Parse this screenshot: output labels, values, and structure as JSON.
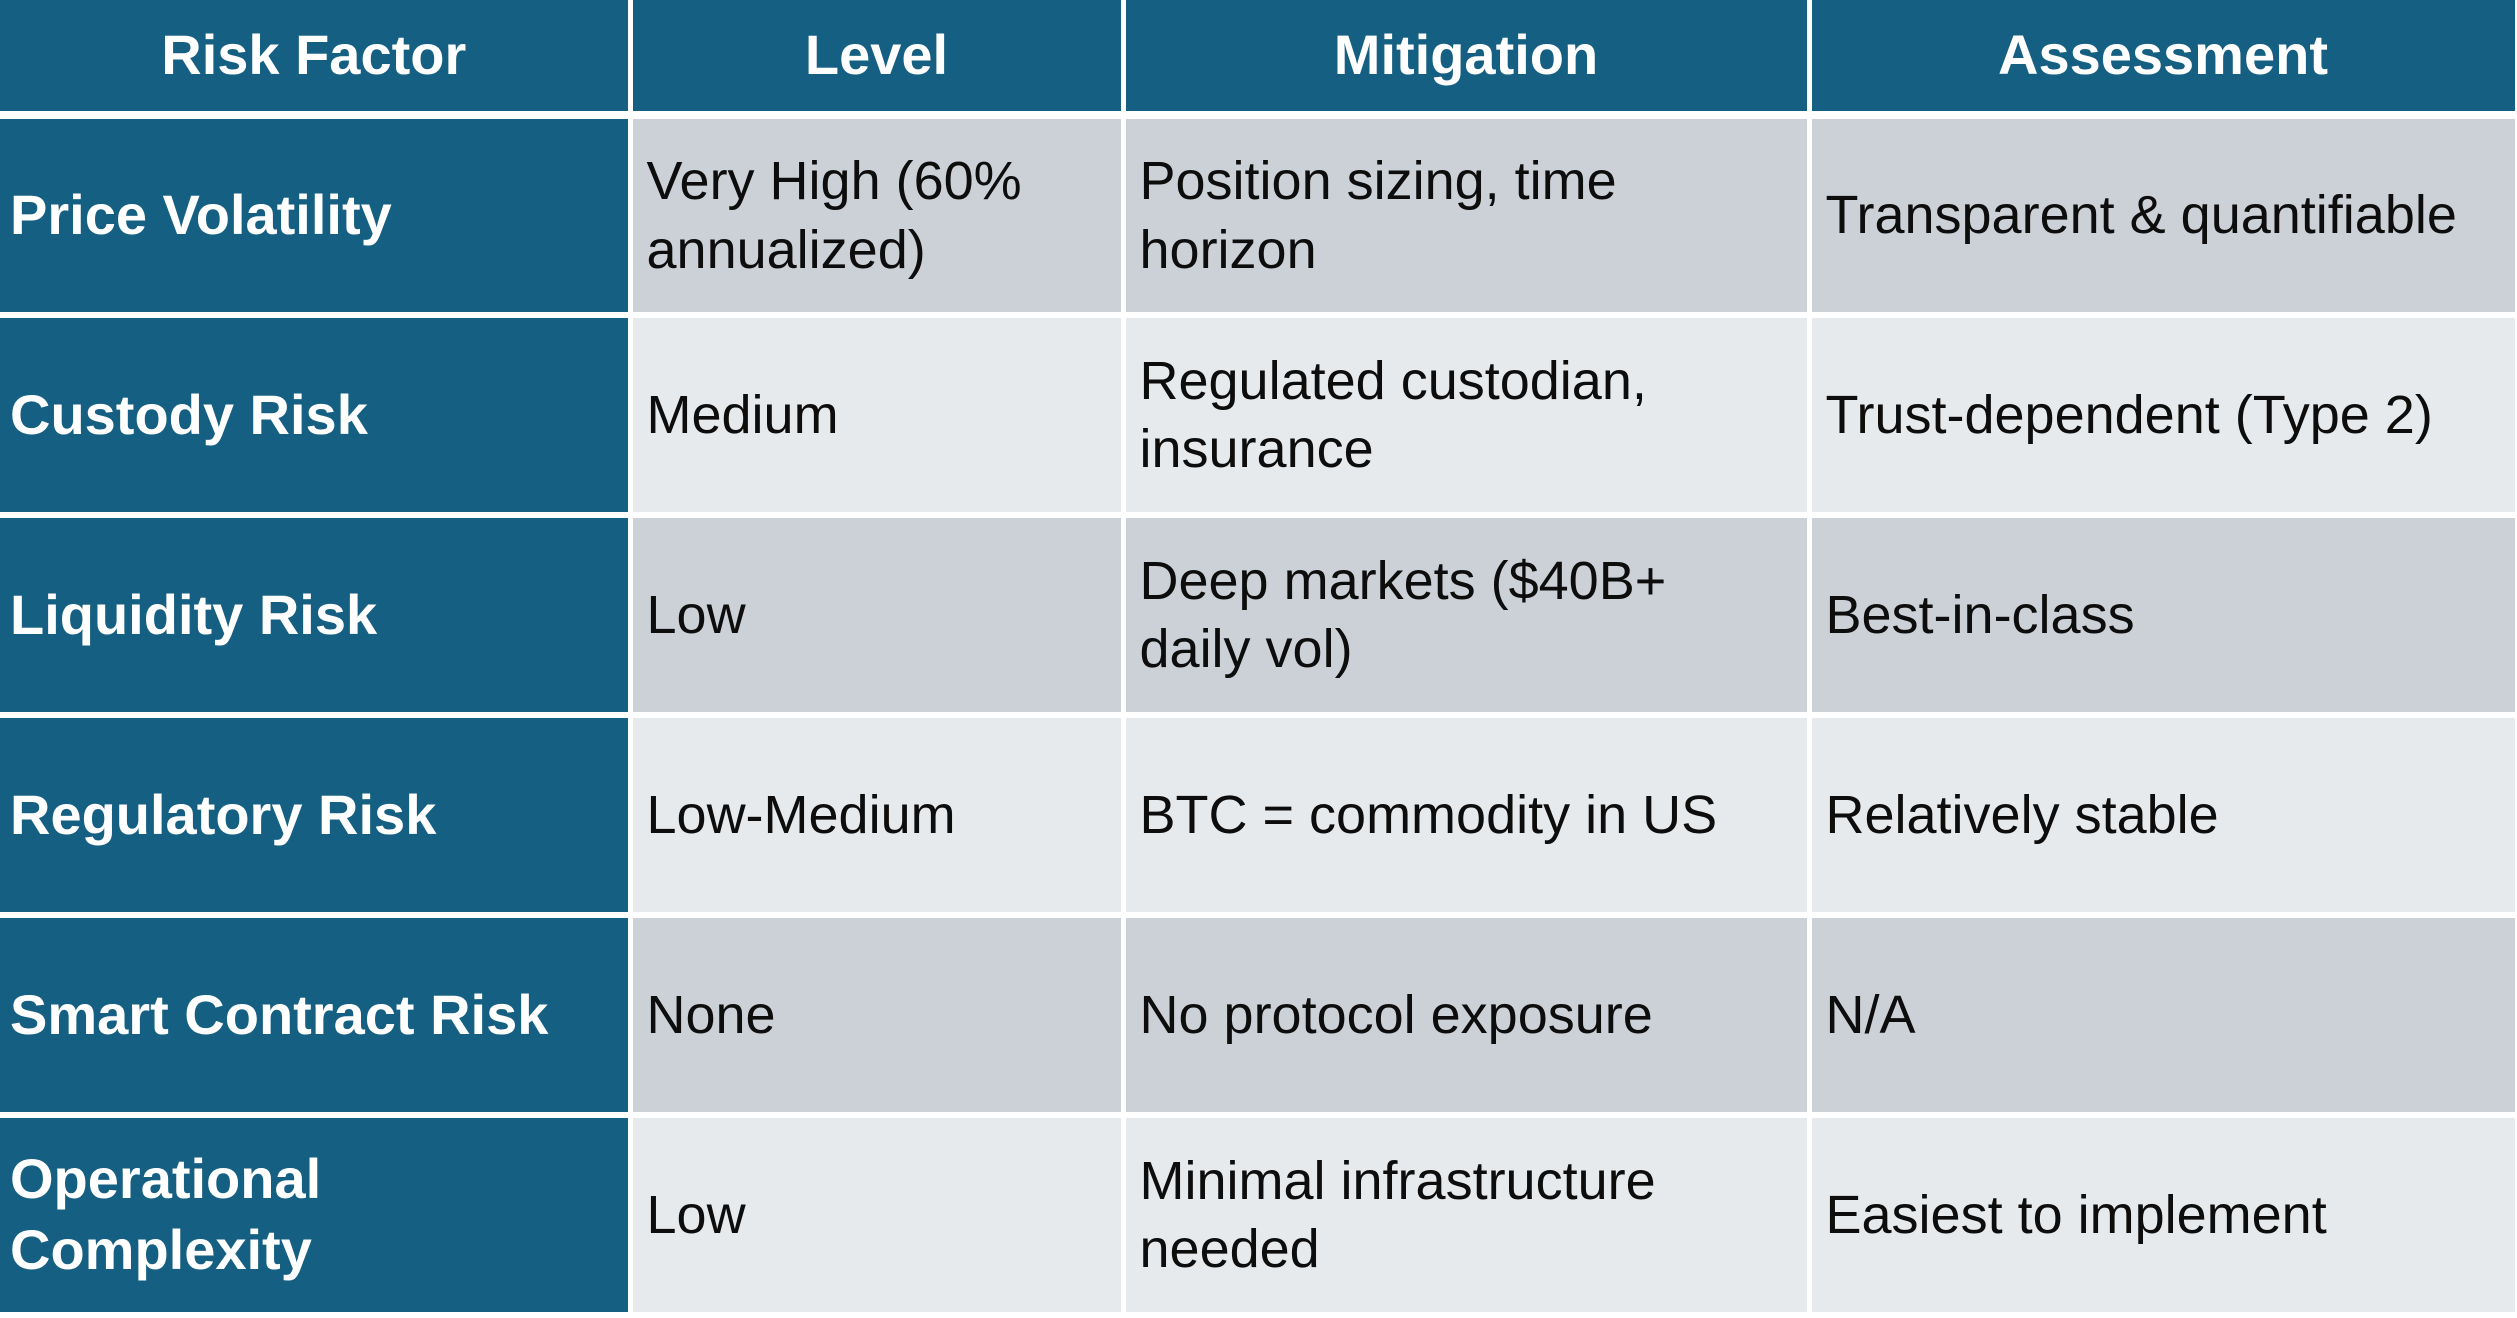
{
  "table": {
    "columns": [
      {
        "label": "Risk Factor"
      },
      {
        "label": "Level"
      },
      {
        "label": "Mitigation"
      },
      {
        "label": "Assessment"
      }
    ],
    "rows": [
      {
        "factor": "Price Volatility",
        "level": "Very High (60% annualized)",
        "mitigation": "Position sizing, time horizon",
        "assessment": "Transparent & quantifiable"
      },
      {
        "factor": "Custody Risk",
        "level": "Medium",
        "mitigation": "Regulated custodian, insurance",
        "assessment": "Trust-dependent (Type 2)"
      },
      {
        "factor": "Liquidity Risk",
        "level": "Low",
        "mitigation": "Deep markets ($40B+ daily vol)",
        "assessment": "Best-in-class"
      },
      {
        "factor": "Regulatory Risk",
        "level": "Low-Medium",
        "mitigation": "BTC = commodity in US",
        "assessment": "Relatively stable"
      },
      {
        "factor": "Smart Contract Risk",
        "level": "None",
        "mitigation": "No protocol exposure",
        "assessment": "N/A"
      },
      {
        "factor": "Operational Complexity",
        "level": "Low",
        "mitigation": "Minimal infrastructure needed",
        "assessment": "Easiest to implement"
      }
    ]
  },
  "colors": {
    "header_bg": "#156082",
    "row_band_dark": "#CCD1D8",
    "row_band_light": "#E7EAEC",
    "gridline": "#FFFFFF",
    "header_text": "#FFFFFF",
    "body_text": "#0D0D0D"
  }
}
